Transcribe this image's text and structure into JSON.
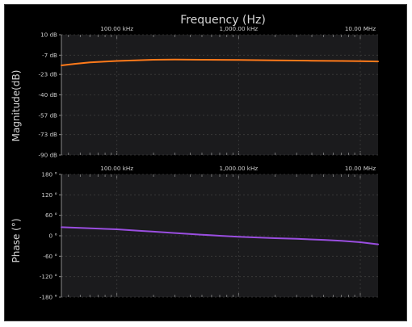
{
  "chart_data": [
    {
      "type": "line",
      "title": "Frequency (Hz)",
      "ylabel": "Magnitude(dB)",
      "x_scale": "log",
      "xlim_hz": [
        35000,
        14000000
      ],
      "x_ticks": [
        {
          "value": 100000,
          "label": "100.00 kHz"
        },
        {
          "value": 1000000,
          "label": "1,000.00 kHz"
        },
        {
          "value": 10000000,
          "label": "10.00 MHz"
        }
      ],
      "ylim": [
        -90,
        10
      ],
      "y_ticks": [
        {
          "value": 10,
          "label": "10 dB"
        },
        {
          "value": -7,
          "label": "-7 dB"
        },
        {
          "value": -23,
          "label": "-23 dB"
        },
        {
          "value": -40,
          "label": "-40 dB"
        },
        {
          "value": -57,
          "label": "-57 dB"
        },
        {
          "value": -73,
          "label": "-73 dB"
        },
        {
          "value": -90,
          "label": "-90 dB"
        }
      ],
      "grid": true,
      "series": [
        {
          "color": "#ff7a1a",
          "x": [
            35000,
            45000,
            60000,
            80000,
            100000,
            150000,
            200000,
            300000,
            500000,
            700000,
            1000000,
            2000000,
            4000000,
            7000000,
            10000000,
            14000000
          ],
          "y": [
            -15.5,
            -14.2,
            -13.0,
            -12.3,
            -11.8,
            -11.2,
            -10.8,
            -10.7,
            -10.8,
            -10.9,
            -11.0,
            -11.3,
            -11.6,
            -11.8,
            -12.0,
            -12.2
          ]
        }
      ]
    },
    {
      "type": "line",
      "ylabel": "Phase (°)",
      "x_scale": "log",
      "xlim_hz": [
        35000,
        14000000
      ],
      "x_ticks": [
        {
          "value": 100000,
          "label": "100.00 kHz"
        },
        {
          "value": 1000000,
          "label": "1,000.00 kHz"
        },
        {
          "value": 10000000,
          "label": "10.00 MHz"
        }
      ],
      "ylim": [
        -180,
        180
      ],
      "y_ticks": [
        {
          "value": 180,
          "label": "180 °"
        },
        {
          "value": 120,
          "label": "120 °"
        },
        {
          "value": 60,
          "label": "60 °"
        },
        {
          "value": 0,
          "label": "0 °"
        },
        {
          "value": -60,
          "label": "-60 °"
        },
        {
          "value": -120,
          "label": "-120 °"
        },
        {
          "value": -180,
          "label": "-180 °"
        }
      ],
      "grid": true,
      "series": [
        {
          "color": "#9a4ee0",
          "x": [
            35000,
            50000,
            70000,
            100000,
            150000,
            200000,
            300000,
            500000,
            700000,
            1000000,
            2000000,
            3000000,
            5000000,
            7000000,
            10000000,
            14000000
          ],
          "y": [
            25,
            23,
            21,
            19,
            15,
            12,
            8,
            3,
            0,
            -3,
            -7,
            -9,
            -12,
            -15,
            -19,
            -25
          ]
        }
      ]
    }
  ]
}
